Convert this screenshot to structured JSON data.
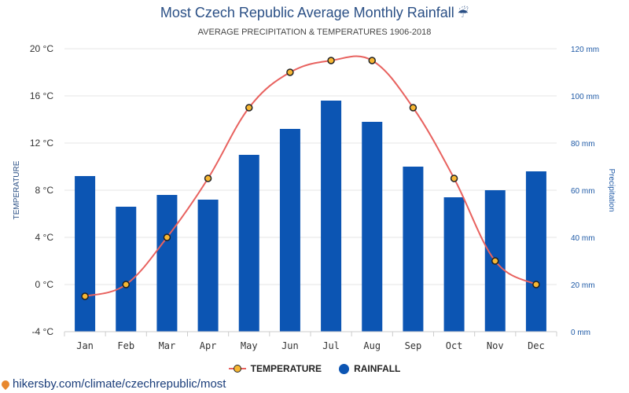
{
  "header": {
    "title": "Most Czech Republic Average Monthly Rainfall",
    "title_icon": "umbrella-rain-icon",
    "subtitle": "AVERAGE PRECIPITATION & TEMPERATURES 1906-2018"
  },
  "legend": {
    "temperature_label": "TEMPERATURE",
    "rainfall_label": "RAINFALL"
  },
  "footer": {
    "source_text": "hikersby.com/climate/czechrepublic/most",
    "source_icon": "location-pin-icon"
  },
  "colors": {
    "bar": "#0c55b3",
    "line": "#e8625f",
    "marker_fill": "#f7b733",
    "marker_stroke": "#222222",
    "right_axis": "#1f5aa6"
  },
  "chart_data": {
    "type": "bar",
    "categories": [
      "Jan",
      "Feb",
      "Mar",
      "Apr",
      "May",
      "Jun",
      "Jul",
      "Aug",
      "Sep",
      "Oct",
      "Nov",
      "Dec"
    ],
    "series": [
      {
        "name": "RAINFALL",
        "type": "bar",
        "axis": "right",
        "values": [
          66,
          53,
          58,
          56,
          75,
          86,
          98,
          89,
          70,
          57,
          60,
          68
        ]
      },
      {
        "name": "TEMPERATURE",
        "type": "line",
        "axis": "left",
        "values": [
          -1,
          0,
          4,
          9,
          15,
          18,
          19,
          19,
          15,
          9,
          2,
          0
        ]
      }
    ],
    "y_left": {
      "label": "TEMPERATURE",
      "range": [
        -4,
        20
      ],
      "ticks": [
        "-4 °C",
        "0 °C",
        "4 °C",
        "8 °C",
        "12 °C",
        "16 °C",
        "20 °C"
      ]
    },
    "y_right": {
      "label": "Precipitation",
      "range": [
        0,
        120
      ],
      "ticks": [
        "0 mm",
        "20 mm",
        "40 mm",
        "60 mm",
        "80 mm",
        "100 mm",
        "120 mm"
      ]
    },
    "grid": true,
    "legend_position": "bottom"
  }
}
